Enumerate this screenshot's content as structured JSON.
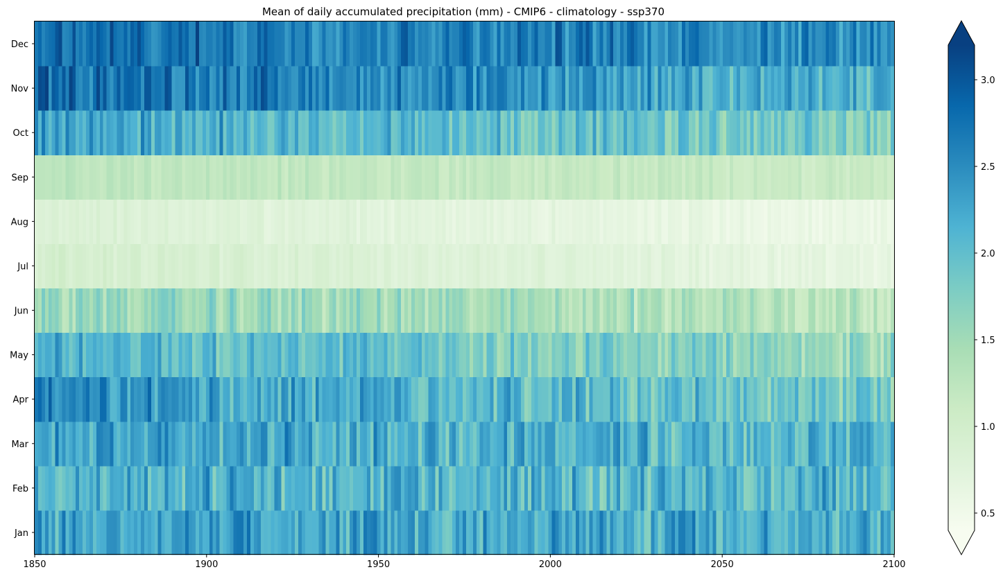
{
  "chart_data": {
    "type": "heatmap",
    "title": "Mean of daily accumulated precipitation (mm) - CMIP6 - climatology  - ssp370",
    "xlabel": "",
    "ylabel": "",
    "x_range": [
      1850,
      2100
    ],
    "x_ticks": [
      1850,
      1900,
      1950,
      2000,
      2050,
      2100
    ],
    "rows": [
      "Jan",
      "Feb",
      "Mar",
      "Apr",
      "May",
      "Jun",
      "Jul",
      "Aug",
      "Sep",
      "Oct",
      "Nov",
      "Dec"
    ],
    "row_order": "Jan at bottom, Dec at top",
    "value_unit": "mm",
    "colormap": "GnBu",
    "color_range": [
      0.4,
      3.2
    ],
    "colorbar_extend": "both",
    "colorbar_ticks": [
      0.5,
      1.0,
      1.5,
      2.0,
      2.5,
      3.0
    ],
    "monthly_mean_levels": {
      "Jan": {
        "start": 2.3,
        "end": 2.2,
        "spread": 0.45
      },
      "Feb": {
        "start": 2.1,
        "end": 2.1,
        "spread": 0.45
      },
      "Mar": {
        "start": 2.3,
        "end": 2.1,
        "spread": 0.4
      },
      "Apr": {
        "start": 2.45,
        "end": 1.8,
        "spread": 0.4
      },
      "May": {
        "start": 2.2,
        "end": 1.5,
        "spread": 0.35
      },
      "Jun": {
        "start": 1.6,
        "end": 1.3,
        "spread": 0.3
      },
      "Jul": {
        "start": 0.95,
        "end": 0.65,
        "spread": 0.1
      },
      "Aug": {
        "start": 0.85,
        "end": 0.55,
        "spread": 0.1
      },
      "Sep": {
        "start": 1.25,
        "end": 1.1,
        "spread": 0.12
      },
      "Oct": {
        "start": 2.3,
        "end": 1.7,
        "spread": 0.35
      },
      "Nov": {
        "start": 2.85,
        "end": 2.1,
        "spread": 0.35
      },
      "Dec": {
        "start": 2.75,
        "end": 2.55,
        "spread": 0.35
      }
    },
    "colors": {
      "GnBu": [
        "#f7fcf0",
        "#e0f3db",
        "#ccebc5",
        "#a8ddb5",
        "#7bccc4",
        "#4eb3d3",
        "#2b8cbe",
        "#0868ac",
        "#084081"
      ]
    }
  }
}
